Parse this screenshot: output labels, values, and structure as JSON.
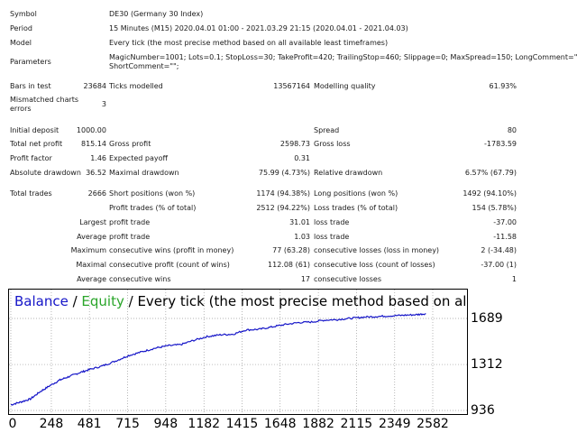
{
  "report": {
    "symbol": {
      "label": "Symbol",
      "value": "DE30 (Germany 30 Index)"
    },
    "period": {
      "label": "Period",
      "value": "15 Minutes (M15) 2020.04.01 01:00 - 2021.03.29 21:15 (2020.04.01 - 2021.04.03)"
    },
    "model": {
      "label": "Model",
      "value": "Every tick (the most precise method based on all available least timeframes)"
    },
    "parameters": {
      "label": "Parameters",
      "line1": "MagicNumber=1001; Lots=0.1; StopLoss=30; TakeProfit=420; TrailingStop=460; Slippage=0; MaxSpread=150; LongComment=\"\";",
      "line2": "ShortComment=\"\";"
    },
    "bars": {
      "label": "Bars in test",
      "value": "23684"
    },
    "ticks": {
      "label": "Ticks modelled",
      "value": "13567164"
    },
    "quality": {
      "label": "Modelling quality",
      "value": "61.93%"
    },
    "mismatched": {
      "label1": "Mismatched charts",
      "label2": "errors",
      "value": "3"
    },
    "initial_deposit": {
      "label": "Initial deposit",
      "value": "1000.00"
    },
    "spread": {
      "label": "Spread",
      "value": "80"
    },
    "net_profit": {
      "label": "Total net profit",
      "value": "815.14"
    },
    "gross_profit": {
      "label": "Gross profit",
      "value": "2598.73"
    },
    "gross_loss": {
      "label": "Gross loss",
      "value": "-1783.59"
    },
    "profit_factor": {
      "label": "Profit factor",
      "value": "1.46"
    },
    "expected_payoff": {
      "label": "Expected payoff",
      "value": "0.31"
    },
    "abs_drawdown": {
      "label": "Absolute drawdown",
      "value": "36.52"
    },
    "max_drawdown": {
      "label": "Maximal drawdown",
      "value": "75.99 (4.73%)"
    },
    "rel_drawdown": {
      "label": "Relative drawdown",
      "value": "6.57% (67.79)"
    },
    "total_trades": {
      "label": "Total trades",
      "value": "2666"
    },
    "short_positions": {
      "label": "Short positions (won %)",
      "value": "1174 (94.38%)"
    },
    "long_positions": {
      "label": "Long positions (won %)",
      "value": "1492 (94.10%)"
    },
    "profit_trades": {
      "label": "Profit trades (% of total)",
      "value": "2512 (94.22%)"
    },
    "loss_trades": {
      "label": "Loss trades (% of total)",
      "value": "154 (5.78%)"
    },
    "largest": {
      "prefix": "Largest",
      "profit_label": "profit trade",
      "profit_value": "31.01",
      "loss_label": "loss trade",
      "loss_value": "-37.00"
    },
    "average": {
      "prefix": "Average",
      "profit_label": "profit trade",
      "profit_value": "1.03",
      "loss_label": "loss trade",
      "loss_value": "-11.58"
    },
    "maximum": {
      "prefix": "Maximum",
      "wins_label": "consecutive wins (profit in money)",
      "wins_value": "77 (63.28)",
      "losses_label": "consecutive losses (loss in money)",
      "losses_value": "2 (-34.48)"
    },
    "maximal": {
      "prefix": "Maximal",
      "profit_label": "consecutive profit (count of wins)",
      "profit_value": "112.08 (61)",
      "loss_label": "consecutive loss (count of losses)",
      "loss_value": "-37.00 (1)"
    },
    "average_consec": {
      "prefix": "Average",
      "wins_label": "consecutive wins",
      "wins_value": "17",
      "losses_label": "consecutive losses",
      "losses_value": "1"
    }
  },
  "chart_data": {
    "type": "line",
    "title_balance": "Balance",
    "title_sep1": " / ",
    "title_equity": "Equity",
    "title_sep2": " / ",
    "title_model": "Every tick (the most precise method based on all available least time",
    "x_ticks": [
      "0",
      "248",
      "481",
      "715",
      "948",
      "1182",
      "1415",
      "1648",
      "1882",
      "2115",
      "2349",
      "2582"
    ],
    "y_ticks": [
      "1689",
      "1312",
      "936"
    ],
    "ylim": [
      936,
      1689
    ],
    "xlim": [
      0,
      2582
    ],
    "grid": true,
    "series": [
      {
        "name": "Balance",
        "color": "#1515c8",
        "x": [
          0,
          60,
          120,
          180,
          240,
          300,
          360,
          420,
          480,
          560,
          640,
          720,
          800,
          880,
          960,
          1040,
          1120,
          1200,
          1280,
          1360,
          1440,
          1520,
          1600,
          1680,
          1760,
          1840,
          1920,
          2000,
          2080,
          2160,
          2240,
          2320,
          2400,
          2480,
          2540
        ],
        "y": [
          982,
          1005,
          1030,
          1090,
          1140,
          1185,
          1215,
          1245,
          1270,
          1300,
          1340,
          1385,
          1415,
          1445,
          1465,
          1475,
          1510,
          1540,
          1555,
          1560,
          1595,
          1600,
          1620,
          1640,
          1655,
          1660,
          1675,
          1680,
          1690,
          1700,
          1705,
          1710,
          1715,
          1720,
          1728
        ]
      }
    ]
  }
}
